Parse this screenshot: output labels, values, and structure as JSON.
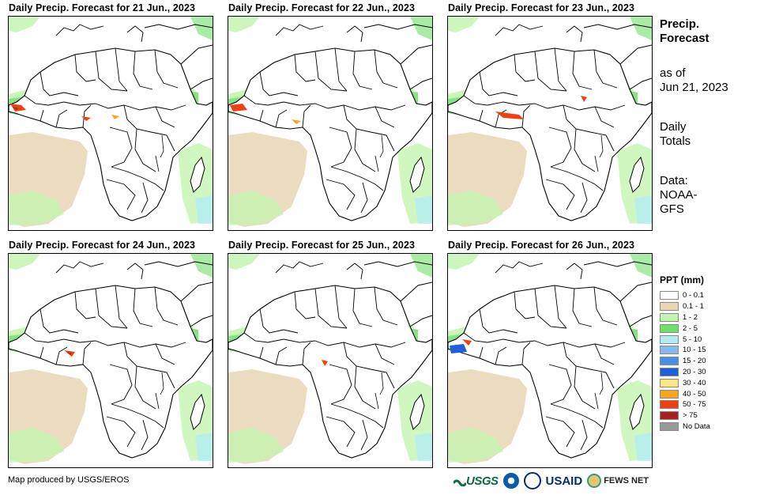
{
  "panels": [
    {
      "title": "Daily Precip. Forecast for 21 Jun., 2023"
    },
    {
      "title": "Daily Precip. Forecast for 22 Jun., 2023"
    },
    {
      "title": "Daily Precip. Forecast for 23 Jun., 2023"
    },
    {
      "title": "Daily Precip. Forecast for 24 Jun., 2023"
    },
    {
      "title": "Daily Precip. Forecast for 25 Jun., 2023"
    },
    {
      "title": "Daily Precip. Forecast for 26 Jun., 2023"
    }
  ],
  "sidebar": {
    "title_line1": "Precip.",
    "title_line2": "Forecast",
    "asof_line1": "as of",
    "asof_line2": "Jun 21, 2023",
    "daily_line1": "Daily",
    "daily_line2": "Totals",
    "data_line1": "Data:",
    "data_line2": "NOAA-",
    "data_line3": "GFS"
  },
  "legend": {
    "title": "PPT (mm)",
    "items": [
      {
        "label": "0 - 0.1",
        "color": "#ffffff"
      },
      {
        "label": "0.1 - 1",
        "color": "#e8d6b4"
      },
      {
        "label": "1 - 2",
        "color": "#c4f5b0"
      },
      {
        "label": "2 - 5",
        "color": "#6fe06a"
      },
      {
        "label": "5 - 10",
        "color": "#b3ecf5"
      },
      {
        "label": "10 - 15",
        "color": "#86b9f0"
      },
      {
        "label": "15 - 20",
        "color": "#4a8ee6"
      },
      {
        "label": "20 - 30",
        "color": "#1f5fd8"
      },
      {
        "label": "30 - 40",
        "color": "#ffe680"
      },
      {
        "label": "40 - 50",
        "color": "#f5a623"
      },
      {
        "label": "50 - 75",
        "color": "#f04010"
      },
      {
        "label": "> 75",
        "color": "#a82020"
      },
      {
        "label": "No Data",
        "color": "#999999"
      }
    ]
  },
  "footer": {
    "credit": "Map produced by USGS/EROS",
    "logo_usgs": "USGS",
    "logo_usaid": "USAID",
    "logo_fews": "FEWS NET"
  }
}
